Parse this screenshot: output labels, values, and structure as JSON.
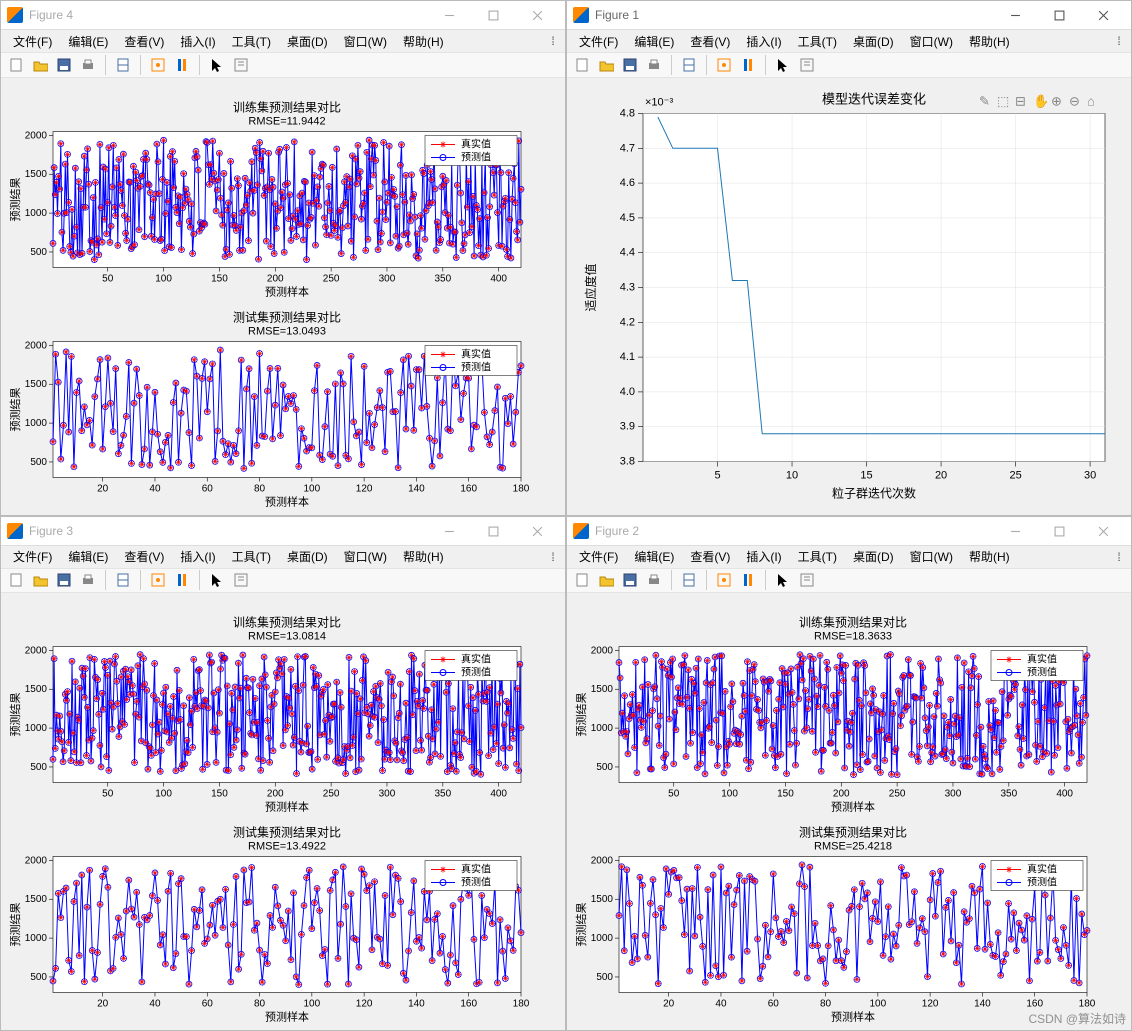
{
  "watermark": "CSDN @算法如诗",
  "menubar": [
    "文件(F)",
    "编辑(E)",
    "查看(V)",
    "插入(I)",
    "工具(T)",
    "桌面(D)",
    "窗口(W)",
    "帮助(H)"
  ],
  "legend_real": "真实值",
  "legend_pred": "预测值",
  "windows": {
    "fig4": {
      "title": "Figure 4",
      "active": false
    },
    "fig1": {
      "title": "Figure 1",
      "active": true
    },
    "fig3": {
      "title": "Figure 3",
      "active": false
    },
    "fig2": {
      "title": "Figure 2",
      "active": false
    }
  },
  "styling": {
    "axis_color": "#000000",
    "grid_color": "#e0e0e0",
    "bg_color": "#ffffff",
    "label_fontsize": 11,
    "title_fontsize": 12,
    "real_marker": "*",
    "real_color": "#ff0000",
    "pred_marker": "o",
    "pred_color": "#0000ff",
    "line_color": "#0000ff",
    "line_width": 1,
    "marker_size": 3
  },
  "dense_chart": {
    "ylabel": "预测结果",
    "xlabel": "预测样本",
    "train_n": 420,
    "test_n": 180,
    "yticks_train": [
      500,
      1000,
      1500,
      2000
    ],
    "xticks_train": [
      50,
      100,
      150,
      200,
      250,
      300,
      350,
      400
    ],
    "yticks_test": [
      500,
      1000,
      1500,
      2000
    ],
    "xticks_test": [
      20,
      40,
      60,
      80,
      100,
      120,
      140,
      160,
      180
    ],
    "ylim": [
      300,
      2050
    ]
  },
  "fig4_train": {
    "title": "训练集预测结果对比",
    "subtitle": "RMSE=11.9442"
  },
  "fig4_test": {
    "title": "测试集预测结果对比",
    "subtitle": "RMSE=13.0493"
  },
  "fig3_train": {
    "title": "训练集预测结果对比",
    "subtitle": "RMSE=13.0814"
  },
  "fig3_test": {
    "title": "测试集预测结果对比",
    "subtitle": "RMSE=13.4922"
  },
  "fig2_train": {
    "title": "训练集预测结果对比",
    "subtitle": "RMSE=18.3633"
  },
  "fig2_test": {
    "title": "测试集预测结果对比",
    "subtitle": "RMSE=25.4218"
  },
  "fig1_chart": {
    "type": "line",
    "title": "模型迭代误差变化",
    "xlabel": "粒子群迭代次数",
    "ylabel": "适应度值",
    "y_exponent_label": "×10⁻³",
    "xlim": [
      0,
      31
    ],
    "ylim": [
      3.8,
      4.8
    ],
    "yticks": [
      3.8,
      3.9,
      4.0,
      4.1,
      4.2,
      4.3,
      4.4,
      4.5,
      4.6,
      4.7,
      4.8
    ],
    "xticks": [
      5,
      10,
      15,
      20,
      25,
      30
    ],
    "line_color": "#1f77b4",
    "line_width": 1,
    "grid_color": "#e0e0e0",
    "background": "#ffffff",
    "data": [
      [
        1,
        4.79
      ],
      [
        2,
        4.7
      ],
      [
        3,
        4.7
      ],
      [
        4,
        4.7
      ],
      [
        5,
        4.7
      ],
      [
        6,
        4.32
      ],
      [
        7,
        4.32
      ],
      [
        8,
        3.88
      ],
      [
        9,
        3.88
      ],
      [
        10,
        3.88
      ],
      [
        11,
        3.88
      ],
      [
        12,
        3.88
      ],
      [
        13,
        3.88
      ],
      [
        14,
        3.88
      ],
      [
        15,
        3.88
      ],
      [
        16,
        3.88
      ],
      [
        17,
        3.88
      ],
      [
        18,
        3.88
      ],
      [
        19,
        3.88
      ],
      [
        20,
        3.88
      ],
      [
        21,
        3.88
      ],
      [
        22,
        3.88
      ],
      [
        23,
        3.88
      ],
      [
        24,
        3.88
      ],
      [
        25,
        3.88
      ],
      [
        26,
        3.88
      ],
      [
        27,
        3.88
      ],
      [
        28,
        3.88
      ],
      [
        29,
        3.88
      ],
      [
        30,
        3.88
      ],
      [
        31,
        3.88
      ]
    ]
  }
}
